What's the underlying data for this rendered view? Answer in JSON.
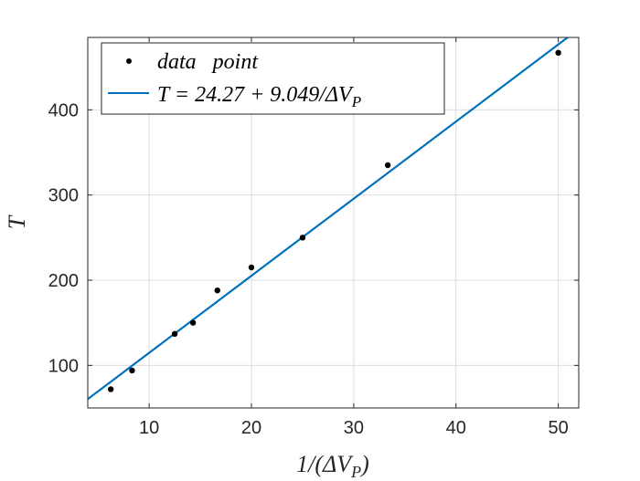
{
  "chart_data": {
    "type": "scatter",
    "xlabel": "1/(ΔV_P)",
    "ylabel": "T",
    "xlim": [
      4,
      52
    ],
    "ylim": [
      50,
      485
    ],
    "xticks": [
      10,
      20,
      30,
      40,
      50
    ],
    "yticks": [
      100,
      200,
      300,
      400
    ],
    "grid": true,
    "legend_position": "top-left",
    "series": [
      {
        "name": "data   point",
        "kind": "scatter",
        "color": "#000000",
        "points": [
          {
            "x": 6.25,
            "y": 72
          },
          {
            "x": 8.33,
            "y": 94
          },
          {
            "x": 12.5,
            "y": 137
          },
          {
            "x": 14.29,
            "y": 150
          },
          {
            "x": 16.67,
            "y": 188
          },
          {
            "x": 20.0,
            "y": 215
          },
          {
            "x": 25.0,
            "y": 250
          },
          {
            "x": 33.33,
            "y": 335
          },
          {
            "x": 50.0,
            "y": 467
          }
        ]
      },
      {
        "name": "T = 24.27 + 9.049/ΔV_P",
        "kind": "line",
        "color": "#0072BD",
        "intercept": 24.27,
        "slope": 9.049,
        "x_range": [
          4,
          52
        ]
      }
    ]
  }
}
